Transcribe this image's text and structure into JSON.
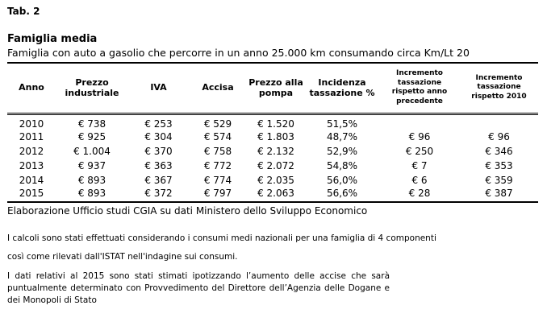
{
  "page": {
    "tab_label": "Tab. 2"
  },
  "table": {
    "title": "Famiglia media",
    "subtitle": "Famiglia con auto a gasolio che percorre in un anno 25.000 km consumando circa Km/Lt 20",
    "columns": [
      {
        "label": "Anno",
        "small": false
      },
      {
        "label": "Prezzo industriale",
        "small": false
      },
      {
        "label": "IVA",
        "small": false
      },
      {
        "label": "Accisa",
        "small": false
      },
      {
        "label": "Prezzo alla pompa",
        "small": false
      },
      {
        "label": "Incidenza tassazione %",
        "small": false
      },
      {
        "label": "Incremento tassazione rispetto anno precedente",
        "small": true
      },
      {
        "label": "Incremento tassazione rispetto 2010",
        "small": true
      }
    ],
    "rows": [
      [
        "2010",
        "€ 738",
        "€ 253",
        "€ 529",
        "€ 1.520",
        "51,5%",
        "",
        ""
      ],
      [
        "2011",
        "€ 925",
        "€ 304",
        "€ 574",
        "€ 1.803",
        "48,7%",
        "€ 96",
        "€ 96"
      ],
      [
        "2012",
        "€ 1.004",
        "€ 370",
        "€ 758",
        "€ 2.132",
        "52,9%",
        "€ 250",
        "€ 346"
      ],
      [
        "2013",
        "€ 937",
        "€ 363",
        "€ 772",
        "€ 2.072",
        "54,8%",
        "€ 7",
        "€ 353"
      ],
      [
        "2014",
        "€ 893",
        "€ 367",
        "€ 774",
        "€ 2.035",
        "56,0%",
        "€ 6",
        "€ 359"
      ],
      [
        "2015",
        "€ 893",
        "€ 372",
        "€ 797",
        "€ 2.063",
        "56,6%",
        "€ 28",
        "€ 387"
      ]
    ],
    "source": "Elaborazione Ufficio studi CGIA su dati Ministero dello Sviluppo Economico"
  },
  "notes": {
    "note1_line1": "I calcoli sono stati effettuati considerando i consumi medi nazionali per una famiglia di 4 componenti",
    "note1_line2": "così come rilevati dall'ISTAT nell'indagine sui consumi.",
    "note2": "I dati relativi al 2015 sono stati stimati ipotizzando l’aumento delle accise che sarà puntualmente determinato con Provvedimento del Direttore dell’Agenzia delle Dogane e dei Monopoli di Stato"
  },
  "colors": {
    "text": "#000000",
    "background": "#ffffff",
    "border": "#000000"
  }
}
